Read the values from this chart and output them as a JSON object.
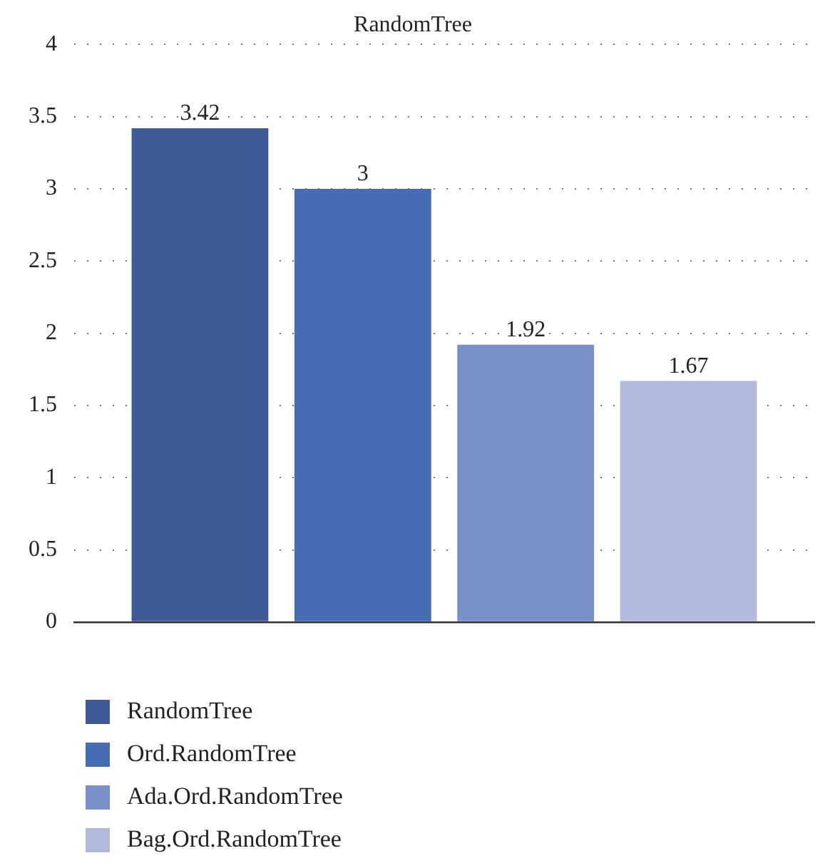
{
  "chart_data": {
    "type": "bar",
    "title": "RandomTree",
    "categories": [
      null
    ],
    "series": [
      {
        "name": "RandomTree",
        "color": "#3d5a96",
        "values": [
          3.42
        ]
      },
      {
        "name": "Ord.RandomTree",
        "color": "#456db4",
        "values": [
          3
        ]
      },
      {
        "name": "Ada.Ord.RandomTree",
        "color": "#788fc7",
        "values": [
          1.92
        ]
      },
      {
        "name": "Bag.Ord.RandomTree",
        "color": "#b0bbde",
        "values": [
          1.67
        ]
      }
    ],
    "ylim": [
      0,
      4
    ],
    "yticks": [
      0,
      0.5,
      1,
      1.5,
      2,
      2.5,
      3,
      3.5,
      4
    ],
    "grid": "y",
    "legend": "bottom",
    "data_labels": true,
    "tick_labels": "y"
  }
}
